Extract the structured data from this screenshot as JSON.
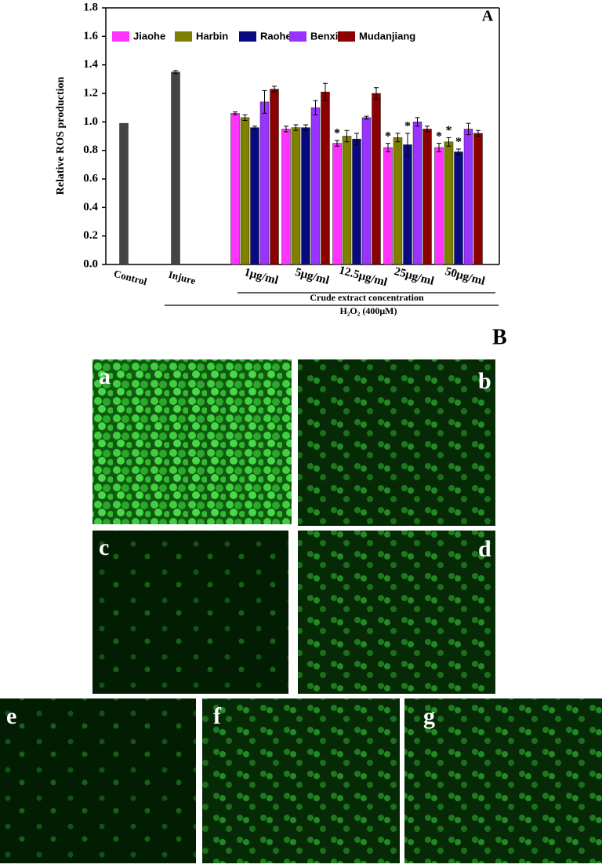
{
  "chart_data": {
    "type": "bar",
    "panel_label": "A",
    "y_label": "Relative ROS production",
    "categories": [
      "Control",
      "Injure",
      "1μg/ml",
      "5μg/ml",
      "12.5μg/ml",
      "25μg/ml",
      "50μg/ml"
    ],
    "group_labels": [
      "Crude extract concentration",
      "H₂O₂ (400μM)"
    ],
    "series": [
      {
        "color": "#444444",
        "values": [
          0.99,
          1.35,
          null,
          null,
          null,
          null,
          null
        ],
        "errors": [
          null,
          0.01,
          null,
          null,
          null,
          null,
          null
        ]
      },
      {
        "name": "Jiaohe",
        "color": "#ff33ff",
        "values": [
          null,
          null,
          1.06,
          0.95,
          0.85,
          0.82,
          0.82
        ],
        "errors": [
          null,
          null,
          0.01,
          0.02,
          0.02,
          0.03,
          0.03
        ],
        "significance": [
          null,
          null,
          null,
          null,
          "*",
          "*",
          "*"
        ]
      },
      {
        "name": "Harbin",
        "color": "#808000",
        "values": [
          null,
          null,
          1.03,
          0.96,
          0.9,
          0.89,
          0.86
        ],
        "errors": [
          null,
          null,
          0.02,
          0.02,
          0.04,
          0.03,
          0.03
        ],
        "significance": [
          null,
          null,
          null,
          null,
          null,
          null,
          "*"
        ]
      },
      {
        "name": "Raohe",
        "color": "#0a0a80",
        "values": [
          null,
          null,
          0.96,
          0.96,
          0.88,
          0.84,
          0.79
        ],
        "errors": [
          null,
          null,
          0.01,
          0.02,
          0.04,
          0.08,
          0.02
        ],
        "significance": [
          null,
          null,
          null,
          null,
          null,
          "*",
          "*"
        ]
      },
      {
        "name": "Benxi",
        "color": "#9933ff",
        "values": [
          null,
          null,
          1.14,
          1.1,
          1.03,
          1.0,
          0.95
        ],
        "errors": [
          null,
          null,
          0.08,
          0.05,
          0.01,
          0.03,
          0.04
        ]
      },
      {
        "name": "Mudanjiang",
        "color": "#8b0000",
        "values": [
          null,
          null,
          1.23,
          1.21,
          1.2,
          0.95,
          0.92
        ],
        "errors": [
          null,
          null,
          0.02,
          0.06,
          0.04,
          0.02,
          0.02
        ]
      }
    ],
    "ylim": [
      0,
      1.8
    ],
    "yticks": [
      {
        "value": 0,
        "label": "0.0"
      },
      0.2,
      0.4,
      0.6,
      0.8,
      {
        "value": 1,
        "label": "1.0"
      },
      1.2,
      1.4,
      1.6,
      1.8
    ]
  },
  "figure": {
    "label": "B",
    "panels": [
      "a",
      "b",
      "c",
      "d",
      "e",
      "f",
      "g"
    ]
  }
}
